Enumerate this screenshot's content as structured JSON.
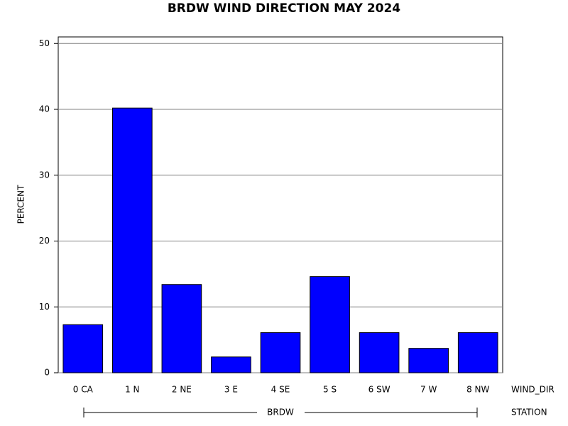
{
  "chart_data": {
    "type": "bar",
    "title": "BRDW WIND DIRECTION MAY 2024",
    "y_label": "PERCENT",
    "x_label": "WIND_DIR",
    "group_label": "BRDW",
    "group_axis_label": "STATION",
    "categories": [
      "0 CA",
      "1 N",
      "2 NE",
      "3 E",
      "4 SE",
      "5 S",
      "6 SW",
      "7 W",
      "8 NW"
    ],
    "values": [
      7.3,
      40.2,
      13.4,
      2.4,
      6.1,
      14.6,
      6.1,
      3.7,
      6.1
    ],
    "color": "#0000ff",
    "ylim": [
      0,
      51
    ],
    "yticks": [
      0,
      10,
      20,
      30,
      40,
      50
    ],
    "grid": true
  }
}
